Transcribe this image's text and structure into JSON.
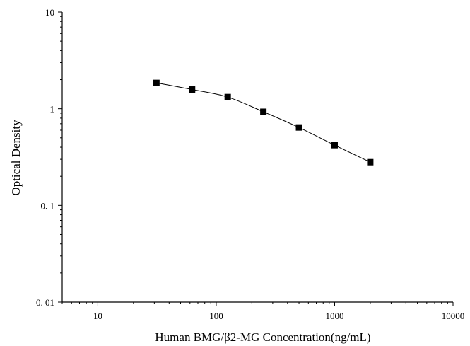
{
  "chart_data": {
    "type": "scatter",
    "title": "",
    "xlabel": "Human BMG/β2-MG Concentration(ng/mL)",
    "ylabel": "Optical Density",
    "x_scale": "log",
    "y_scale": "log",
    "xlim": [
      5,
      10000
    ],
    "ylim": [
      0.01,
      10
    ],
    "x_ticks": [
      10,
      100,
      1000,
      10000
    ],
    "x_tick_labels": [
      "10",
      "100",
      "1000",
      "10000"
    ],
    "y_ticks": [
      0.01,
      0.1,
      1,
      10
    ],
    "y_tick_labels": [
      "0. 01",
      "0. 1",
      "1",
      "10"
    ],
    "grid": false,
    "legend": "none",
    "series": [
      {
        "x": [
          31.25,
          62.5,
          125,
          250,
          500,
          1000,
          2000
        ],
        "y": [
          1.85,
          1.58,
          1.32,
          0.93,
          0.64,
          0.42,
          0.28
        ],
        "marker": "square",
        "fitted_curve": true,
        "color": "#000000"
      }
    ]
  }
}
